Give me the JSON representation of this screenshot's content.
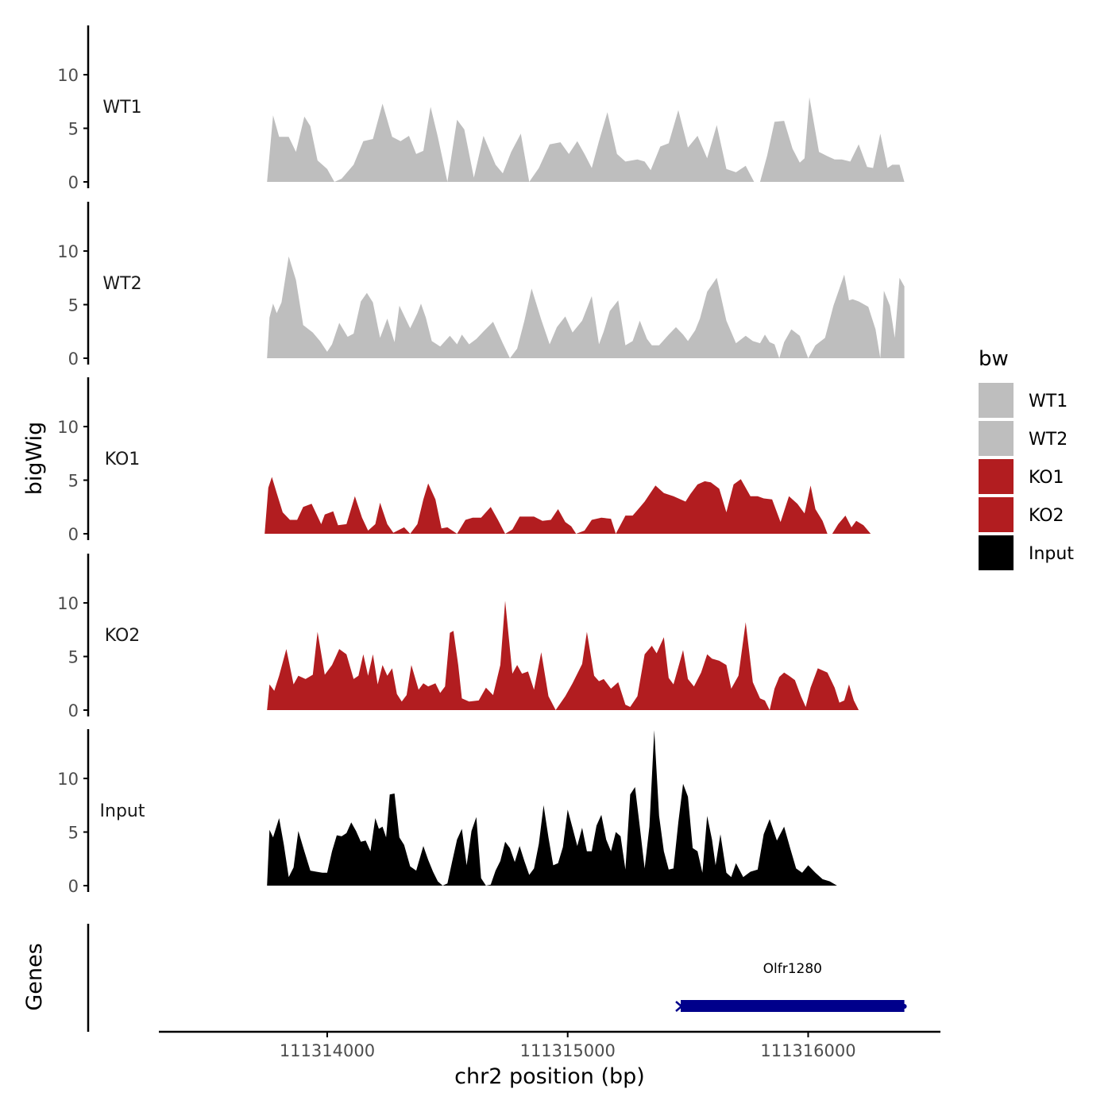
{
  "chart_data": {
    "type": "area",
    "ylabel": "bigWig",
    "xlabel": "chr2 position (bp)",
    "xlim": [
      111313300,
      111316550
    ],
    "x_ticks": [
      111314000,
      111315000,
      111316000
    ],
    "x_tick_labels": [
      "111314000",
      "111315000",
      "111316000"
    ],
    "ylim": [
      0,
      14.6
    ],
    "y_ticks": [
      0,
      5,
      10
    ],
    "y_tick_labels": [
      "0",
      "5",
      "10"
    ],
    "legend": {
      "title": "bw",
      "position": "right",
      "entries": [
        {
          "label": "WT1",
          "color": "#bebebe"
        },
        {
          "label": "WT2",
          "color": "#bebebe"
        },
        {
          "label": "KO1",
          "color": "#b21d20"
        },
        {
          "label": "KO2",
          "color": "#b21d20"
        },
        {
          "label": "Input",
          "color": "#000000"
        }
      ]
    },
    "tracks": [
      {
        "name": "WT1",
        "color": "#bebebe",
        "x": [
          111313750,
          111313775,
          111313800,
          111313840,
          111313870,
          111313905,
          111313930,
          111313960,
          111314000,
          111314030,
          111314060,
          111314110,
          111314150,
          111314190,
          111314230,
          111314270,
          111314305,
          111314340,
          111314370,
          111314400,
          111314430,
          111314460,
          111314500,
          111314540,
          111314570,
          111314610,
          111314650,
          111314700,
          111314730,
          111314765,
          111314805,
          111314840,
          111314880,
          111314925,
          111314970,
          111315005,
          111315040,
          111315070,
          111315100,
          111315130,
          111315165,
          111315205,
          111315240,
          111315290,
          111315320,
          111315345,
          111315385,
          111315420,
          111315460,
          111315500,
          111315540,
          111315580,
          111315620,
          111315660,
          111315700,
          111315740,
          111315775,
          111315800,
          111315830,
          111315860,
          111315900,
          111315935,
          111315965,
          111315985,
          111316005,
          111316045,
          111316080,
          111316110,
          111316140,
          111316175,
          111316210,
          111316245,
          111316270,
          111316300,
          111316330,
          111316350,
          111316380,
          111316400
        ],
        "values": [
          0,
          6.2,
          4.2,
          4.2,
          2.8,
          6.1,
          5.2,
          2,
          1.2,
          0,
          0.3,
          1.6,
          3.8,
          4,
          7.3,
          4.2,
          3.8,
          4.3,
          2.6,
          2.9,
          7,
          4.2,
          0,
          5.8,
          4.9,
          0.4,
          4.3,
          1.6,
          0.8,
          2.8,
          4.5,
          0,
          1.3,
          3.5,
          3.7,
          2.6,
          3.8,
          2.6,
          1.3,
          3.8,
          6.5,
          2.6,
          1.9,
          2.1,
          1.9,
          1.1,
          3.3,
          3.6,
          6.7,
          3.2,
          4.3,
          2.2,
          5.3,
          1.2,
          0.9,
          1.5,
          0,
          0,
          2.5,
          5.6,
          5.7,
          3.1,
          1.8,
          2.2,
          7.9,
          2.8,
          2.4,
          2.1,
          2.1,
          1.9,
          3.5,
          1.4,
          1.3,
          4.5,
          1.3,
          1.6,
          1.6,
          0
        ]
      },
      {
        "name": "WT2",
        "color": "#bebebe",
        "x": [
          111313750,
          111313760,
          111313775,
          111313790,
          111313810,
          111313840,
          111313870,
          111313900,
          111313940,
          111313970,
          111314000,
          111314020,
          111314050,
          111314085,
          111314110,
          111314140,
          111314165,
          111314190,
          111314220,
          111314250,
          111314280,
          111314300,
          111314345,
          111314375,
          111314390,
          111314410,
          111314435,
          111314470,
          111314510,
          111314540,
          111314560,
          111314590,
          111314620,
          111314650,
          111314690,
          111314730,
          111314760,
          111314790,
          111314820,
          111314850,
          111314890,
          111314925,
          111314955,
          111314990,
          111315020,
          111315060,
          111315100,
          111315130,
          111315150,
          111315175,
          111315210,
          111315240,
          111315270,
          111315300,
          111315330,
          111315350,
          111315380,
          111315420,
          111315450,
          111315480,
          111315500,
          111315530,
          111315550,
          111315580,
          111315620,
          111315660,
          111315700,
          111315740,
          111315770,
          111315800,
          111315820,
          111315840,
          111315860,
          111315880,
          111315900,
          111315930,
          111315965,
          111316000,
          111316030,
          111316070,
          111316105,
          111316150,
          111316170,
          111316185,
          111316210,
          111316250,
          111316280,
          111316300,
          111316315,
          111316340,
          111316360,
          111316380,
          111316400
        ],
        "values": [
          0,
          3.8,
          5.1,
          4.2,
          5.2,
          9.5,
          7.3,
          3.1,
          2.4,
          1.6,
          0.6,
          1.3,
          3.3,
          2,
          2.3,
          5.3,
          6.1,
          5.2,
          1.9,
          3.7,
          1.5,
          4.9,
          2.8,
          4.2,
          5.1,
          3.8,
          1.6,
          1.1,
          2.1,
          1.3,
          2.2,
          1.3,
          1.8,
          2.5,
          3.4,
          1.4,
          0,
          0.9,
          3.5,
          6.5,
          3.6,
          1.3,
          2.9,
          3.9,
          2.4,
          3.5,
          5.8,
          1.3,
          2.5,
          4.4,
          5.4,
          1.2,
          1.6,
          3.5,
          1.8,
          1.2,
          1.2,
          2.2,
          2.9,
          2.2,
          1.6,
          2.6,
          3.7,
          6.2,
          7.5,
          3.5,
          1.4,
          2.1,
          1.6,
          1.4,
          2.2,
          1.5,
          1.3,
          0,
          1.5,
          2.7,
          2.1,
          0,
          1.2,
          1.9,
          4.9,
          7.8,
          5.4,
          5.5,
          5.3,
          4.8,
          2.7,
          0,
          6.3,
          4.9,
          1.9,
          7.5,
          6.7
        ]
      },
      {
        "name": "KO1",
        "color": "#b21d20",
        "x": [
          111313740,
          111313755,
          111313770,
          111313790,
          111313815,
          111313845,
          111313875,
          111313900,
          111313935,
          111313975,
          111313990,
          111314025,
          111314045,
          111314080,
          111314115,
          111314145,
          111314170,
          111314200,
          111314220,
          111314250,
          111314275,
          111314320,
          111314345,
          111314375,
          111314400,
          111314420,
          111314450,
          111314475,
          111314500,
          111314540,
          111314575,
          111314605,
          111314640,
          111314680,
          111314710,
          111314740,
          111314770,
          111314800,
          111314825,
          111314860,
          111314895,
          111314930,
          111314960,
          111314990,
          111315015,
          111315035,
          111315070,
          111315100,
          111315140,
          111315180,
          111315200,
          111315240,
          111315270,
          111315290,
          111315320,
          111315365,
          111315400,
          111315440,
          111315490,
          111315510,
          111315540,
          111315570,
          111315595,
          111315630,
          111315660,
          111315690,
          111315720,
          111315760,
          111315790,
          111315815,
          111315850,
          111315885,
          111315920,
          111315955,
          111315985,
          111316010,
          111316030,
          111316060,
          111316080,
          111316100,
          111316125,
          111316155,
          111316180,
          111316200,
          111316230,
          111316260,
          111316280,
          111316300,
          111316310,
          111316330,
          111316360,
          111316380
        ],
        "values": [
          0,
          4.3,
          5.3,
          3.8,
          2,
          1.3,
          1.3,
          2.5,
          2.8,
          0.9,
          1.8,
          2.1,
          0.8,
          0.9,
          3.5,
          1.5,
          0.3,
          0.9,
          2.9,
          0.9,
          0.1,
          0.6,
          0,
          0.9,
          3.2,
          4.7,
          3.2,
          0.5,
          0.6,
          0,
          1.3,
          1.5,
          1.5,
          2.5,
          1.3,
          0,
          0.4,
          1.6,
          1.6,
          1.6,
          1.2,
          1.3,
          2.3,
          1.1,
          0.7,
          0,
          0.3,
          1.3,
          1.5,
          1.4,
          0,
          1.7,
          1.7,
          2.2,
          3,
          4.5,
          3.8,
          3.5,
          3,
          3.7,
          4.6,
          4.9,
          4.8,
          4.2,
          2,
          4.6,
          5.1,
          3.5,
          3.5,
          3.3,
          3.2,
          1.1,
          3.5,
          2.8,
          1.9,
          4.5,
          2.3,
          1.2,
          0,
          0,
          0.9,
          1.7,
          0.6,
          1.2,
          0.8,
          0,
          0,
          0,
          0,
          0,
          0,
          0
        ]
      },
      {
        "name": "KO2",
        "color": "#b21d20",
        "x": [
          111313750,
          111313760,
          111313780,
          111313800,
          111313830,
          111313860,
          111313880,
          111313910,
          111313940,
          111313960,
          111313990,
          111314020,
          111314050,
          111314080,
          111314110,
          111314130,
          111314150,
          111314170,
          111314190,
          111314210,
          111314230,
          111314250,
          111314270,
          111314290,
          111314310,
          111314330,
          111314350,
          111314380,
          111314400,
          111314420,
          111314450,
          111314470,
          111314490,
          111314510,
          111314525,
          111314545,
          111314560,
          111314590,
          111314630,
          111314660,
          111314690,
          111314720,
          111314740,
          111314770,
          111314790,
          111314810,
          111314835,
          111314860,
          111314890,
          111314920,
          111314950,
          111314990,
          111315020,
          111315060,
          111315080,
          111315110,
          111315130,
          111315150,
          111315180,
          111315210,
          111315240,
          111315260,
          111315290,
          111315320,
          111315350,
          111315370,
          111315400,
          111315420,
          111315440,
          111315460,
          111315480,
          111315500,
          111315525,
          111315555,
          111315580,
          111315600,
          111315630,
          111315660,
          111315680,
          111315710,
          111315740,
          111315770,
          111315800,
          111315820,
          111315840,
          111315860,
          111315880,
          111315900,
          111315920,
          111315945,
          111315970,
          111315990,
          111316010,
          111316040,
          111316080,
          111316110,
          111316130,
          111316150,
          111316170,
          111316190,
          111316210,
          111316240,
          111316260,
          111316280,
          111316300,
          111316320,
          111316340,
          111316365,
          111316380,
          111316390
        ],
        "values": [
          0,
          2.4,
          1.8,
          3.2,
          5.7,
          2.4,
          3.2,
          2.9,
          3.3,
          7.3,
          3.3,
          4.2,
          5.7,
          5.2,
          2.9,
          3.2,
          5.2,
          3.2,
          5.2,
          2.4,
          4.2,
          3.2,
          3.9,
          1.5,
          0.8,
          1.4,
          4.2,
          1.9,
          2.5,
          2.2,
          2.5,
          1.6,
          2.2,
          7.2,
          7.4,
          4.2,
          1.1,
          0.8,
          0.9,
          2.1,
          1.4,
          4.2,
          10.2,
          3.4,
          4.2,
          3.4,
          3.6,
          1.9,
          5.4,
          1.3,
          0,
          1.3,
          2.5,
          4.3,
          7.3,
          3.2,
          2.7,
          2.9,
          2,
          2.6,
          0.5,
          0.3,
          1.3,
          5.2,
          6,
          5.3,
          6.8,
          3,
          2.4,
          4,
          5.6,
          2.9,
          2.2,
          3.5,
          5.2,
          4.8,
          4.6,
          4.2,
          2,
          3.2,
          8.2,
          2.6,
          1.1,
          0.9,
          0,
          2,
          3.1,
          3.5,
          3.2,
          2.8,
          1.3,
          0.3,
          2.1,
          3.9,
          3.5,
          2.1,
          0.7,
          0.9,
          2.4,
          0.9,
          0,
          0,
          0,
          0,
          0,
          0,
          0,
          0,
          0,
          0
        ]
      },
      {
        "name": "Input",
        "color": "#000000",
        "x": [
          111313750,
          111313760,
          111313775,
          111313800,
          111313820,
          111313840,
          111313860,
          111313880,
          111313905,
          111313930,
          111313955,
          111313980,
          111314000,
          111314020,
          111314040,
          111314060,
          111314080,
          111314100,
          111314120,
          111314140,
          111314160,
          111314180,
          111314200,
          111314215,
          111314230,
          111314245,
          111314260,
          111314280,
          111314300,
          111314320,
          111314345,
          111314370,
          111314400,
          111314420,
          111314440,
          111314460,
          111314480,
          111314500,
          111314520,
          111314540,
          111314560,
          111314580,
          111314600,
          111314620,
          111314640,
          111314660,
          111314680,
          111314700,
          111314720,
          111314740,
          111314760,
          111314780,
          111314800,
          111314820,
          111314840,
          111314860,
          111314880,
          111314900,
          111314920,
          111314940,
          111314960,
          111314980,
          111315000,
          111315020,
          111315040,
          111315060,
          111315080,
          111315100,
          111315120,
          111315140,
          111315160,
          111315180,
          111315200,
          111315220,
          111315240,
          111315260,
          111315280,
          111315300,
          111315320,
          111315340,
          111315360,
          111315380,
          111315400,
          111315420,
          111315440,
          111315460,
          111315480,
          111315500,
          111315520,
          111315540,
          111315560,
          111315580,
          111315600,
          111315615,
          111315635,
          111315660,
          111315680,
          111315700,
          111315730,
          111315760,
          111315790,
          111315815,
          111315840,
          111315870,
          111315900,
          111315925,
          111315950,
          111315975,
          111316000,
          111316030,
          111316060,
          111316090,
          111316120,
          111316150,
          111316175,
          111316200,
          111316230,
          111316260,
          111316290,
          111316320,
          111316350,
          111316380
        ],
        "values": [
          0,
          5.2,
          4.5,
          6.3,
          3.8,
          0.8,
          1.7,
          5.1,
          3.2,
          1.4,
          1.3,
          1.2,
          1.2,
          3.2,
          4.7,
          4.6,
          4.9,
          5.9,
          5.1,
          4.1,
          4.2,
          3.2,
          6.3,
          5.3,
          5.5,
          4.5,
          8.5,
          8.6,
          4.5,
          3.8,
          1.8,
          1.4,
          3.7,
          2.4,
          1.3,
          0.4,
          0,
          0.2,
          2.3,
          4.3,
          5.3,
          1.9,
          5.1,
          6.4,
          0.7,
          0,
          0.1,
          1.4,
          2.3,
          4.1,
          3.5,
          2.2,
          3.7,
          2.3,
          1,
          1.6,
          3.9,
          7.5,
          4.5,
          1.9,
          2.1,
          3.6,
          7.1,
          5.4,
          3.7,
          5.4,
          3.2,
          3.2,
          5.6,
          6.6,
          4.3,
          3.2,
          5,
          4.6,
          1.5,
          8.5,
          9.2,
          5.5,
          1.6,
          5.5,
          14.5,
          6.5,
          3.2,
          1.5,
          1.6,
          5.9,
          9.5,
          8.3,
          3.5,
          3.2,
          1.2,
          6.5,
          4.3,
          1.9,
          4.8,
          1.2,
          0.8,
          2.1,
          0.8,
          1.3,
          1.5,
          4.8,
          6.2,
          4.2,
          5.5,
          3.5,
          1.6,
          1.2,
          1.9,
          1.2,
          0.6,
          0.4,
          0,
          0,
          0,
          0,
          0,
          0,
          0,
          0,
          0,
          0
        ]
      }
    ],
    "genes_panel": {
      "ylabel": "Genes",
      "genes": [
        {
          "name": "Olfr1280",
          "start": 111315470,
          "end": 111316400,
          "strand": "-",
          "color": "#00008b"
        }
      ]
    }
  }
}
